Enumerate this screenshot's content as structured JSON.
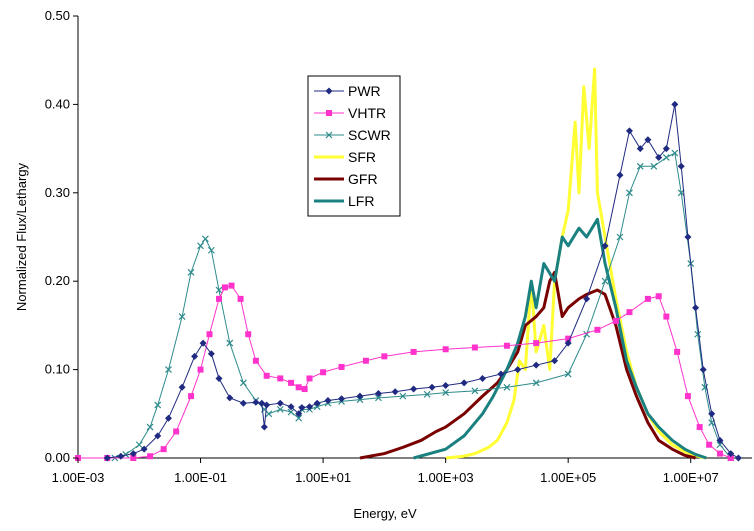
{
  "chart_data": {
    "type": "line",
    "title": "",
    "xlabel": "Energy, eV",
    "ylabel": "Normalized Flux/Lethargy",
    "x_scale": "log",
    "xlim": [
      0.001,
      100000000
    ],
    "ylim": [
      0,
      0.5
    ],
    "x_ticks": [
      {
        "value": 0.001,
        "label": "1.00E-03"
      },
      {
        "value": 0.1,
        "label": "1.00E-01"
      },
      {
        "value": 10,
        "label": "1.00E+01"
      },
      {
        "value": 1000,
        "label": "1.00E+03"
      },
      {
        "value": 100000,
        "label": "1.00E+05"
      },
      {
        "value": 10000000,
        "label": "1.00E+07"
      }
    ],
    "y_ticks": [
      {
        "value": 0,
        "label": "0.00"
      },
      {
        "value": 0.1,
        "label": "0.10"
      },
      {
        "value": 0.2,
        "label": "0.20"
      },
      {
        "value": 0.3,
        "label": "0.30"
      },
      {
        "value": 0.4,
        "label": "0.40"
      },
      {
        "value": 0.5,
        "label": "0.50"
      }
    ],
    "grid": false,
    "legend_position": "upper-left-center",
    "series": [
      {
        "name": "PWR",
        "color": "#1f2a80",
        "marker": "diamond",
        "line_width": 1,
        "points": [
          [
            0.003,
            0.0
          ],
          [
            0.005,
            0.002
          ],
          [
            0.008,
            0.005
          ],
          [
            0.012,
            0.01
          ],
          [
            0.02,
            0.025
          ],
          [
            0.03,
            0.045
          ],
          [
            0.05,
            0.08
          ],
          [
            0.08,
            0.115
          ],
          [
            0.11,
            0.13
          ],
          [
            0.15,
            0.118
          ],
          [
            0.2,
            0.09
          ],
          [
            0.3,
            0.068
          ],
          [
            0.5,
            0.062
          ],
          [
            0.8,
            0.063
          ],
          [
            1.0,
            0.062
          ],
          [
            1.1,
            0.035
          ],
          [
            1.2,
            0.06
          ],
          [
            2,
            0.062
          ],
          [
            3,
            0.058
          ],
          [
            4,
            0.05
          ],
          [
            4.5,
            0.057
          ],
          [
            6,
            0.058
          ],
          [
            8,
            0.062
          ],
          [
            12,
            0.065
          ],
          [
            20,
            0.067
          ],
          [
            40,
            0.07
          ],
          [
            80,
            0.073
          ],
          [
            150,
            0.075
          ],
          [
            300,
            0.078
          ],
          [
            600,
            0.08
          ],
          [
            1000,
            0.082
          ],
          [
            2000,
            0.085
          ],
          [
            4000,
            0.09
          ],
          [
            8000,
            0.095
          ],
          [
            15000,
            0.1
          ],
          [
            30000,
            0.105
          ],
          [
            60000,
            0.11
          ],
          [
            100000,
            0.13
          ],
          [
            200000,
            0.18
          ],
          [
            400000,
            0.24
          ],
          [
            700000,
            0.32
          ],
          [
            1000000,
            0.37
          ],
          [
            1500000,
            0.35
          ],
          [
            2000000,
            0.36
          ],
          [
            3000000,
            0.34
          ],
          [
            4000000,
            0.35
          ],
          [
            5500000,
            0.4
          ],
          [
            7000000,
            0.33
          ],
          [
            9000000,
            0.25
          ],
          [
            12000000,
            0.17
          ],
          [
            16000000,
            0.1
          ],
          [
            22000000,
            0.05
          ],
          [
            30000000,
            0.02
          ],
          [
            45000000,
            0.005
          ],
          [
            60000000,
            0.0
          ]
        ]
      },
      {
        "name": "VHTR",
        "color": "#ff33cc",
        "marker": "square",
        "line_width": 1,
        "points": [
          [
            0.001,
            0.0
          ],
          [
            0.003,
            0.0
          ],
          [
            0.008,
            0.0
          ],
          [
            0.015,
            0.002
          ],
          [
            0.025,
            0.01
          ],
          [
            0.04,
            0.03
          ],
          [
            0.07,
            0.07
          ],
          [
            0.1,
            0.1
          ],
          [
            0.14,
            0.14
          ],
          [
            0.2,
            0.18
          ],
          [
            0.25,
            0.193
          ],
          [
            0.32,
            0.195
          ],
          [
            0.45,
            0.18
          ],
          [
            0.6,
            0.14
          ],
          [
            0.8,
            0.11
          ],
          [
            1.2,
            0.093
          ],
          [
            2,
            0.09
          ],
          [
            3,
            0.085
          ],
          [
            4,
            0.08
          ],
          [
            5,
            0.078
          ],
          [
            6,
            0.09
          ],
          [
            10,
            0.097
          ],
          [
            20,
            0.103
          ],
          [
            50,
            0.11
          ],
          [
            100,
            0.115
          ],
          [
            300,
            0.12
          ],
          [
            1000,
            0.123
          ],
          [
            3000,
            0.125
          ],
          [
            10000,
            0.127
          ],
          [
            30000,
            0.13
          ],
          [
            100000,
            0.135
          ],
          [
            300000,
            0.145
          ],
          [
            600000,
            0.155
          ],
          [
            1000000,
            0.165
          ],
          [
            2000000,
            0.18
          ],
          [
            3000000,
            0.183
          ],
          [
            4000000,
            0.16
          ],
          [
            6000000,
            0.12
          ],
          [
            9000000,
            0.07
          ],
          [
            14000000,
            0.035
          ],
          [
            20000000,
            0.015
          ],
          [
            30000000,
            0.005
          ],
          [
            45000000,
            0.0
          ]
        ]
      },
      {
        "name": "SCWR",
        "color": "#2e8b8b",
        "marker": "x",
        "line_width": 1,
        "points": [
          [
            0.004,
            0.0
          ],
          [
            0.006,
            0.004
          ],
          [
            0.01,
            0.015
          ],
          [
            0.015,
            0.035
          ],
          [
            0.02,
            0.06
          ],
          [
            0.03,
            0.1
          ],
          [
            0.05,
            0.16
          ],
          [
            0.07,
            0.21
          ],
          [
            0.1,
            0.24
          ],
          [
            0.12,
            0.248
          ],
          [
            0.15,
            0.235
          ],
          [
            0.2,
            0.19
          ],
          [
            0.3,
            0.13
          ],
          [
            0.5,
            0.085
          ],
          [
            0.8,
            0.065
          ],
          [
            1.1,
            0.055
          ],
          [
            1.3,
            0.05
          ],
          [
            2,
            0.055
          ],
          [
            3,
            0.052
          ],
          [
            4,
            0.045
          ],
          [
            4.5,
            0.055
          ],
          [
            6,
            0.055
          ],
          [
            8,
            0.058
          ],
          [
            12,
            0.062
          ],
          [
            20,
            0.064
          ],
          [
            40,
            0.066
          ],
          [
            80,
            0.068
          ],
          [
            200,
            0.07
          ],
          [
            500,
            0.072
          ],
          [
            1000,
            0.074
          ],
          [
            3000,
            0.076
          ],
          [
            10000,
            0.08
          ],
          [
            30000,
            0.085
          ],
          [
            100000,
            0.095
          ],
          [
            200000,
            0.14
          ],
          [
            400000,
            0.2
          ],
          [
            700000,
            0.25
          ],
          [
            1000000,
            0.3
          ],
          [
            1500000,
            0.33
          ],
          [
            2500000,
            0.33
          ],
          [
            4000000,
            0.34
          ],
          [
            5500000,
            0.345
          ],
          [
            7000000,
            0.3
          ],
          [
            10000000,
            0.22
          ],
          [
            13000000,
            0.14
          ],
          [
            17000000,
            0.08
          ],
          [
            22000000,
            0.04
          ],
          [
            30000000,
            0.015
          ],
          [
            45000000,
            0.0
          ]
        ]
      },
      {
        "name": "SFR",
        "color": "#ffff33",
        "marker": "none",
        "line_width": 3,
        "points": [
          [
            1000,
            0.0
          ],
          [
            2000,
            0.002
          ],
          [
            3000,
            0.005
          ],
          [
            5000,
            0.012
          ],
          [
            7000,
            0.02
          ],
          [
            10000,
            0.04
          ],
          [
            13000,
            0.065
          ],
          [
            16000,
            0.11
          ],
          [
            20000,
            0.1
          ],
          [
            25000,
            0.2
          ],
          [
            30000,
            0.12
          ],
          [
            40000,
            0.15
          ],
          [
            50000,
            0.1
          ],
          [
            60000,
            0.2
          ],
          [
            80000,
            0.25
          ],
          [
            100000,
            0.28
          ],
          [
            130000,
            0.38
          ],
          [
            150000,
            0.3
          ],
          [
            180000,
            0.42
          ],
          [
            220000,
            0.35
          ],
          [
            270000,
            0.44
          ],
          [
            300000,
            0.3
          ],
          [
            400000,
            0.25
          ],
          [
            600000,
            0.18
          ],
          [
            900000,
            0.12
          ],
          [
            1300000,
            0.08
          ],
          [
            2000000,
            0.05
          ],
          [
            3000000,
            0.03
          ],
          [
            5000000,
            0.015
          ],
          [
            8000000,
            0.007
          ],
          [
            13000000,
            0.002
          ],
          [
            18000000,
            0.0
          ]
        ]
      },
      {
        "name": "GFR",
        "color": "#7a0000",
        "marker": "none",
        "line_width": 3,
        "points": [
          [
            40,
            0.0
          ],
          [
            100,
            0.005
          ],
          [
            200,
            0.012
          ],
          [
            400,
            0.02
          ],
          [
            700,
            0.03
          ],
          [
            1000,
            0.035
          ],
          [
            2000,
            0.05
          ],
          [
            4000,
            0.07
          ],
          [
            7000,
            0.085
          ],
          [
            10000,
            0.1
          ],
          [
            15000,
            0.12
          ],
          [
            20000,
            0.15
          ],
          [
            30000,
            0.16
          ],
          [
            40000,
            0.17
          ],
          [
            50000,
            0.2
          ],
          [
            60000,
            0.21
          ],
          [
            80000,
            0.16
          ],
          [
            100000,
            0.17
          ],
          [
            150000,
            0.18
          ],
          [
            200000,
            0.185
          ],
          [
            300000,
            0.19
          ],
          [
            400000,
            0.185
          ],
          [
            600000,
            0.15
          ],
          [
            900000,
            0.1
          ],
          [
            1300000,
            0.07
          ],
          [
            2000000,
            0.04
          ],
          [
            3000000,
            0.02
          ],
          [
            5000000,
            0.01
          ],
          [
            8000000,
            0.003
          ],
          [
            12000000,
            0.0
          ]
        ]
      },
      {
        "name": "LFR",
        "color": "#1a8080",
        "marker": "none",
        "line_width": 3,
        "points": [
          [
            300,
            0.0
          ],
          [
            1000,
            0.01
          ],
          [
            2000,
            0.025
          ],
          [
            4000,
            0.05
          ],
          [
            6000,
            0.07
          ],
          [
            10000,
            0.1
          ],
          [
            15000,
            0.13
          ],
          [
            20000,
            0.16
          ],
          [
            25000,
            0.2
          ],
          [
            30000,
            0.17
          ],
          [
            40000,
            0.22
          ],
          [
            60000,
            0.2
          ],
          [
            80000,
            0.25
          ],
          [
            100000,
            0.24
          ],
          [
            150000,
            0.26
          ],
          [
            200000,
            0.25
          ],
          [
            300000,
            0.27
          ],
          [
            400000,
            0.22
          ],
          [
            600000,
            0.17
          ],
          [
            900000,
            0.11
          ],
          [
            1300000,
            0.08
          ],
          [
            2000000,
            0.05
          ],
          [
            3000000,
            0.035
          ],
          [
            5000000,
            0.02
          ],
          [
            8000000,
            0.01
          ],
          [
            12000000,
            0.004
          ],
          [
            18000000,
            0.0
          ]
        ]
      }
    ]
  }
}
